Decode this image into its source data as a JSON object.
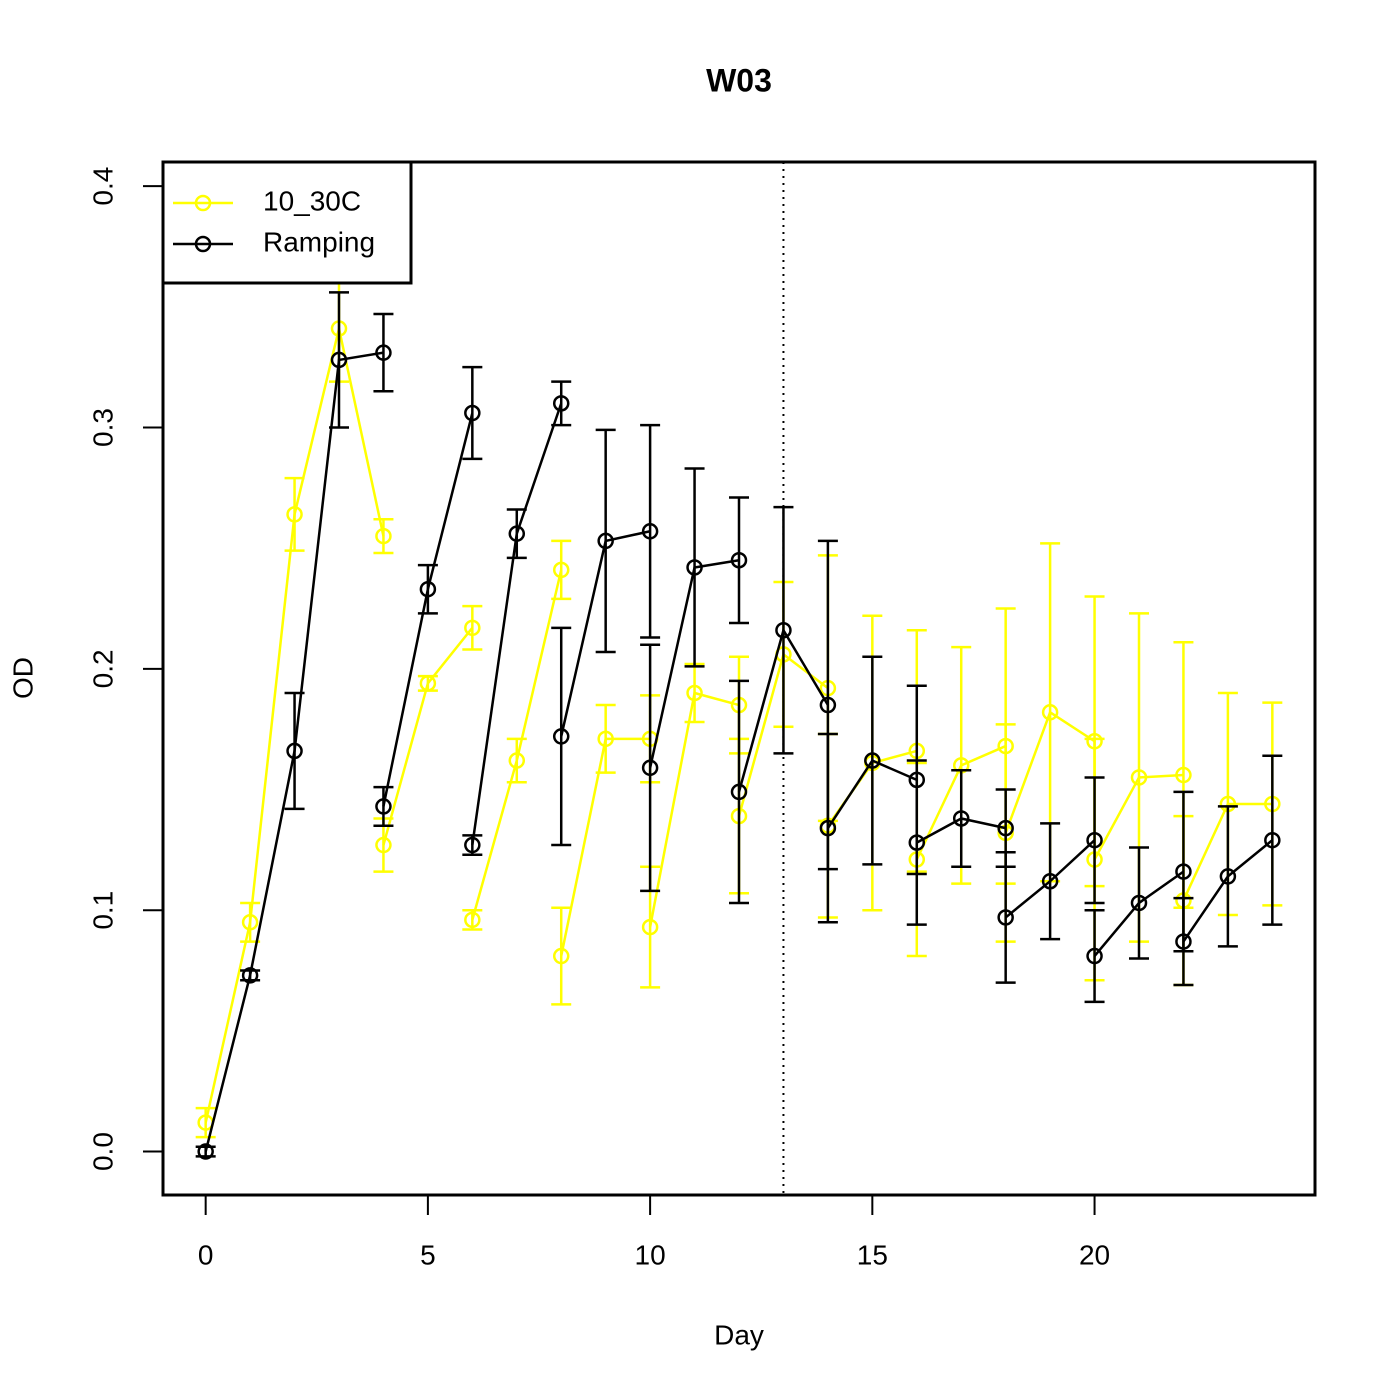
{
  "chart_data": {
    "type": "line",
    "title": "W03",
    "x_label": "Day",
    "y_label": "OD",
    "xlim": [
      -0.96,
      24.96
    ],
    "ylim": [
      -0.018,
      0.41
    ],
    "xticks": [
      0,
      5,
      10,
      15,
      20
    ],
    "yticks": [
      {
        "value": 0,
        "label": "0.0"
      },
      0.1,
      0.2,
      0.3,
      0.4
    ],
    "vline": 13,
    "legend": "top-left",
    "series": [
      {
        "name": "10_30C",
        "color": "#ffff00",
        "x": [
          0,
          1,
          2,
          3,
          4,
          null,
          4,
          5,
          6,
          null,
          6,
          7,
          8,
          null,
          8,
          9,
          10,
          null,
          10,
          11,
          12,
          null,
          12,
          13,
          14,
          null,
          14,
          15,
          16,
          null,
          16,
          17,
          18,
          null,
          18,
          19,
          20,
          null,
          20,
          21,
          22,
          null,
          22,
          23,
          24
        ],
        "values": [
          0.012,
          0.095,
          0.264,
          0.341,
          0.255,
          null,
          0.127,
          0.194,
          0.217,
          null,
          0.096,
          0.162,
          0.241,
          null,
          0.081,
          0.171,
          0.171,
          null,
          0.093,
          0.19,
          0.185,
          null,
          0.139,
          0.206,
          0.192,
          null,
          0.135,
          0.161,
          0.166,
          null,
          0.121,
          0.16,
          0.168,
          null,
          0.132,
          0.182,
          0.17,
          null,
          0.121,
          0.155,
          0.156,
          null,
          0.104,
          0.144,
          0.144
        ],
        "errors": [
          0.006,
          0.008,
          0.015,
          0.022,
          0.007,
          null,
          0.011,
          0.003,
          0.009,
          null,
          0.004,
          0.009,
          0.012,
          null,
          0.02,
          0.014,
          0.018,
          null,
          0.025,
          0.012,
          0.02,
          null,
          0.032,
          0.03,
          0.055,
          null,
          0.038,
          0.061,
          0.05,
          null,
          0.04,
          0.049,
          0.057,
          null,
          0.045,
          0.07,
          0.06,
          null,
          0.05,
          0.068,
          0.055,
          null,
          0.035,
          0.046,
          0.042
        ]
      },
      {
        "name": "Ramping",
        "color": "#000000",
        "x": [
          0,
          1,
          2,
          3,
          4,
          null,
          4,
          5,
          6,
          null,
          6,
          7,
          8,
          null,
          8,
          9,
          10,
          null,
          10,
          11,
          12,
          null,
          12,
          13,
          14,
          null,
          14,
          15,
          16,
          null,
          16,
          17,
          18,
          null,
          18,
          19,
          20,
          null,
          20,
          21,
          22,
          null,
          22,
          23,
          24
        ],
        "values": [
          0,
          0.073,
          0.166,
          0.328,
          0.331,
          null,
          0.143,
          0.233,
          0.306,
          null,
          0.127,
          0.256,
          0.31,
          null,
          0.172,
          0.253,
          0.257,
          null,
          0.159,
          0.242,
          0.245,
          null,
          0.149,
          0.216,
          0.185,
          null,
          0.134,
          0.162,
          0.154,
          null,
          0.128,
          0.138,
          0.134,
          null,
          0.097,
          0.112,
          0.129,
          null,
          0.081,
          0.103,
          0.116,
          null,
          0.087,
          0.114,
          0.129
        ],
        "errors": [
          0.002,
          0.002,
          0.024,
          0.028,
          0.016,
          null,
          0.008,
          0.01,
          0.019,
          null,
          0.004,
          0.01,
          0.009,
          null,
          0.045,
          0.046,
          0.044,
          null,
          0.051,
          0.041,
          0.026,
          null,
          0.046,
          0.051,
          0.068,
          null,
          0.039,
          0.043,
          0.039,
          null,
          0.034,
          0.02,
          0.016,
          null,
          0.027,
          0.024,
          0.026,
          null,
          0.019,
          0.023,
          0.033,
          null,
          0.018,
          0.029,
          0.035
        ]
      }
    ]
  }
}
